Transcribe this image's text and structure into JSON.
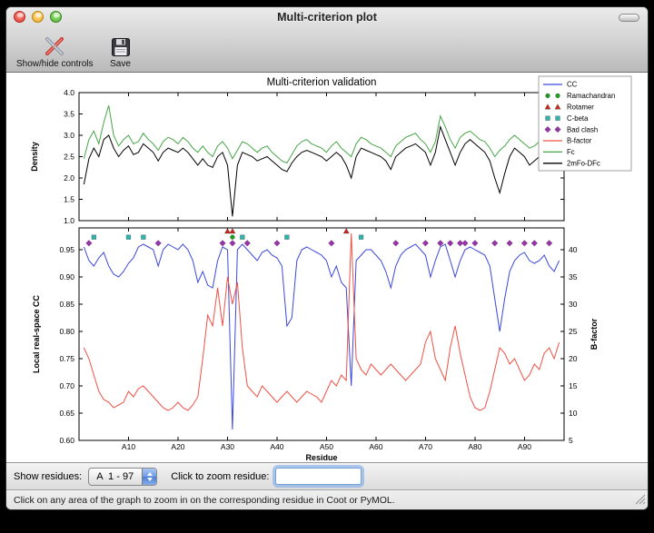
{
  "window": {
    "title": "Multi-criterion plot",
    "toolbar": {
      "show_hide_button": "Show/hide controls",
      "save_button": "Save"
    },
    "controls": {
      "show_residues_label": "Show residues:",
      "residue_range_value": "A  1 - 97",
      "zoom_label": "Click to zoom residue:",
      "zoom_input_value": ""
    },
    "status_text": "Click on any area of the graph to zoom in on the corresponding residue in Coot or PyMOL."
  },
  "figure": {
    "legend": [
      {
        "label": "CC",
        "swatch": "line",
        "color": "#3c48dd"
      },
      {
        "label": "Ramachandran",
        "swatch": "circle",
        "color": "#1e9e1e"
      },
      {
        "label": "Rotamer",
        "swatch": "triangle",
        "color": "#c8281e"
      },
      {
        "label": "C-beta",
        "swatch": "square",
        "color": "#2fb3ab"
      },
      {
        "label": "Bad clash",
        "swatch": "diamond",
        "color": "#9933aa"
      },
      {
        "label": "B-factor",
        "swatch": "line",
        "color": "#ef5145"
      },
      {
        "label": "Fc",
        "swatch": "line",
        "color": "#46a546"
      },
      {
        "label": "2mFo-DFc",
        "swatch": "line",
        "color": "#000000"
      }
    ]
  },
  "chart_data": [
    {
      "type": "line",
      "title": "Multi-criterion validation",
      "ylabel": "Density",
      "ylim": [
        1.0,
        4.0
      ],
      "yticks": [
        1.0,
        1.5,
        2.0,
        2.5,
        3.0,
        3.5,
        4.0
      ],
      "xlim": [
        0,
        98
      ],
      "x": [
        1,
        2,
        3,
        4,
        5,
        6,
        7,
        8,
        9,
        10,
        11,
        12,
        13,
        14,
        15,
        16,
        17,
        18,
        19,
        20,
        21,
        22,
        23,
        24,
        25,
        26,
        27,
        28,
        29,
        30,
        31,
        32,
        33,
        34,
        35,
        36,
        37,
        38,
        39,
        40,
        41,
        42,
        43,
        44,
        45,
        46,
        47,
        48,
        49,
        50,
        51,
        52,
        53,
        54,
        55,
        56,
        57,
        58,
        59,
        60,
        61,
        62,
        63,
        64,
        65,
        66,
        67,
        68,
        69,
        70,
        71,
        72,
        73,
        74,
        75,
        76,
        77,
        78,
        79,
        80,
        81,
        82,
        83,
        84,
        85,
        86,
        87,
        88,
        89,
        90,
        91,
        92,
        93,
        94,
        95,
        96,
        97
      ],
      "series": [
        {
          "name": "Fc",
          "color": "#46a546",
          "values": [
            2.45,
            2.9,
            3.1,
            2.8,
            3.3,
            3.7,
            3.0,
            2.75,
            2.9,
            3.0,
            2.8,
            2.85,
            3.05,
            2.9,
            2.8,
            2.65,
            2.85,
            2.95,
            2.9,
            2.8,
            2.95,
            2.85,
            2.7,
            2.6,
            2.75,
            2.6,
            2.5,
            2.75,
            2.85,
            2.7,
            2.45,
            2.65,
            2.85,
            2.8,
            2.7,
            2.6,
            2.7,
            2.75,
            2.6,
            2.5,
            2.4,
            2.35,
            2.55,
            2.75,
            2.85,
            2.9,
            2.8,
            2.75,
            2.7,
            2.6,
            2.75,
            2.85,
            2.7,
            2.6,
            2.5,
            2.8,
            2.95,
            2.9,
            2.8,
            2.75,
            2.7,
            2.6,
            2.5,
            2.75,
            2.85,
            2.95,
            3.0,
            3.05,
            2.9,
            2.8,
            2.6,
            2.85,
            3.45,
            3.2,
            2.9,
            2.7,
            2.95,
            3.05,
            3.1,
            3.0,
            2.9,
            2.85,
            2.7,
            2.5,
            2.65,
            2.75,
            2.9,
            3.0,
            2.9,
            2.8,
            2.7,
            2.75,
            2.85,
            3.0,
            2.9,
            2.75,
            3.45
          ]
        },
        {
          "name": "2mFo-DFc",
          "color": "#000000",
          "values": [
            1.85,
            2.45,
            2.7,
            2.5,
            2.9,
            3.0,
            2.7,
            2.5,
            2.65,
            2.75,
            2.55,
            2.6,
            2.8,
            2.7,
            2.6,
            2.4,
            2.6,
            2.7,
            2.65,
            2.6,
            2.7,
            2.6,
            2.45,
            2.3,
            2.45,
            2.3,
            2.25,
            2.5,
            2.6,
            2.3,
            1.1,
            2.3,
            2.6,
            2.55,
            2.5,
            2.4,
            2.45,
            2.5,
            2.4,
            2.3,
            2.2,
            2.15,
            2.35,
            2.5,
            2.6,
            2.65,
            2.6,
            2.55,
            2.5,
            2.4,
            2.5,
            2.6,
            2.5,
            2.3,
            2.0,
            2.5,
            2.7,
            2.65,
            2.6,
            2.55,
            2.5,
            2.4,
            2.2,
            2.5,
            2.6,
            2.7,
            2.75,
            2.8,
            2.7,
            2.6,
            2.3,
            2.6,
            3.2,
            2.9,
            2.6,
            2.3,
            2.6,
            2.8,
            2.9,
            2.8,
            2.7,
            2.6,
            2.4,
            2.0,
            1.65,
            2.1,
            2.5,
            2.7,
            2.6,
            2.5,
            2.3,
            2.4,
            2.5,
            2.8,
            2.6,
            2.2,
            3.3
          ]
        }
      ]
    },
    {
      "type": "line",
      "xlabel": "Residue",
      "xlim": [
        0,
        98
      ],
      "xticks": [
        10,
        20,
        30,
        40,
        50,
        60,
        70,
        80,
        90
      ],
      "xtick_labels": [
        "A10",
        "A20",
        "A30",
        "A40",
        "A50",
        "A60",
        "A70",
        "A80",
        "A90"
      ],
      "ylabel_left": "Local real-space CC",
      "ylim_left": [
        0.6,
        0.99
      ],
      "yticks_left": [
        0.6,
        0.65,
        0.7,
        0.75,
        0.8,
        0.85,
        0.9,
        0.95
      ],
      "ylabel_right": "B-factor",
      "ylim_right": [
        5,
        44
      ],
      "yticks_right": [
        5,
        10,
        15,
        20,
        25,
        30,
        35,
        40
      ],
      "x": [
        1,
        2,
        3,
        4,
        5,
        6,
        7,
        8,
        9,
        10,
        11,
        12,
        13,
        14,
        15,
        16,
        17,
        18,
        19,
        20,
        21,
        22,
        23,
        24,
        25,
        26,
        27,
        28,
        29,
        30,
        31,
        32,
        33,
        34,
        35,
        36,
        37,
        38,
        39,
        40,
        41,
        42,
        43,
        44,
        45,
        46,
        47,
        48,
        49,
        50,
        51,
        52,
        53,
        54,
        55,
        56,
        57,
        58,
        59,
        60,
        61,
        62,
        63,
        64,
        65,
        66,
        67,
        68,
        69,
        70,
        71,
        72,
        73,
        74,
        75,
        76,
        77,
        78,
        79,
        80,
        81,
        82,
        83,
        84,
        85,
        86,
        87,
        88,
        89,
        90,
        91,
        92,
        93,
        94,
        95,
        96,
        97
      ],
      "series": [
        {
          "name": "CC",
          "axis": "left",
          "color": "#3c48dd",
          "values": [
            0.955,
            0.93,
            0.92,
            0.935,
            0.945,
            0.92,
            0.905,
            0.9,
            0.91,
            0.925,
            0.935,
            0.955,
            0.96,
            0.955,
            0.95,
            0.92,
            0.95,
            0.96,
            0.955,
            0.95,
            0.96,
            0.95,
            0.93,
            0.89,
            0.91,
            0.885,
            0.88,
            0.93,
            0.955,
            0.95,
            0.62,
            0.95,
            0.96,
            0.95,
            0.94,
            0.93,
            0.945,
            0.95,
            0.94,
            0.935,
            0.92,
            0.81,
            0.825,
            0.93,
            0.95,
            0.955,
            0.95,
            0.945,
            0.94,
            0.93,
            0.9,
            0.92,
            0.89,
            0.88,
            0.7,
            0.93,
            0.94,
            0.95,
            0.95,
            0.94,
            0.93,
            0.91,
            0.88,
            0.92,
            0.94,
            0.95,
            0.955,
            0.96,
            0.95,
            0.94,
            0.9,
            0.93,
            0.955,
            0.96,
            0.93,
            0.9,
            0.93,
            0.95,
            0.955,
            0.95,
            0.945,
            0.94,
            0.92,
            0.86,
            0.8,
            0.86,
            0.91,
            0.93,
            0.94,
            0.945,
            0.93,
            0.925,
            0.93,
            0.94,
            0.92,
            0.91,
            0.93
          ]
        },
        {
          "name": "B-factor",
          "axis": "right",
          "color": "#ef5145",
          "values": [
            22,
            20,
            17,
            14,
            12.5,
            12,
            11,
            11.5,
            12,
            14,
            13,
            14.5,
            15,
            14,
            13,
            12,
            11,
            10.5,
            11,
            12,
            11,
            10.5,
            11.5,
            13,
            20,
            28,
            26,
            33,
            26,
            35,
            30,
            34,
            22,
            15,
            14,
            13,
            15,
            14,
            13,
            12,
            13,
            14,
            13,
            12,
            13,
            14,
            13.5,
            13,
            12,
            14,
            16,
            15,
            17,
            16,
            43,
            20,
            18,
            17,
            19,
            18,
            17,
            18,
            19,
            18,
            17,
            16,
            17,
            18,
            19,
            23,
            25,
            20,
            18,
            16,
            22,
            26,
            21,
            17,
            13,
            11,
            10.5,
            11,
            14,
            18,
            22,
            21,
            19,
            20,
            18,
            16,
            17,
            19,
            18,
            21,
            22,
            20,
            23
          ]
        }
      ],
      "outlier_markers": [
        {
          "name": "Ramachandran",
          "shape": "circle",
          "color": "#1e9e1e",
          "row_y": 0.973,
          "residues": [
            31
          ]
        },
        {
          "name": "Rotamer",
          "shape": "triangle",
          "color": "#c8281e",
          "row_y": 0.984,
          "residues": [
            30,
            31,
            54
          ]
        },
        {
          "name": "C-beta",
          "shape": "square",
          "color": "#2fb3ab",
          "row_y": 0.973,
          "residues": [
            3,
            10,
            13,
            33,
            42,
            57
          ]
        },
        {
          "name": "Bad clash",
          "shape": "diamond",
          "color": "#9933aa",
          "row_y": 0.962,
          "residues": [
            2,
            16,
            29,
            31,
            34,
            40,
            51,
            64,
            70,
            73,
            75,
            77,
            78,
            80,
            84,
            87,
            90,
            92,
            95
          ]
        }
      ],
      "legend_position": "upper right"
    }
  ]
}
